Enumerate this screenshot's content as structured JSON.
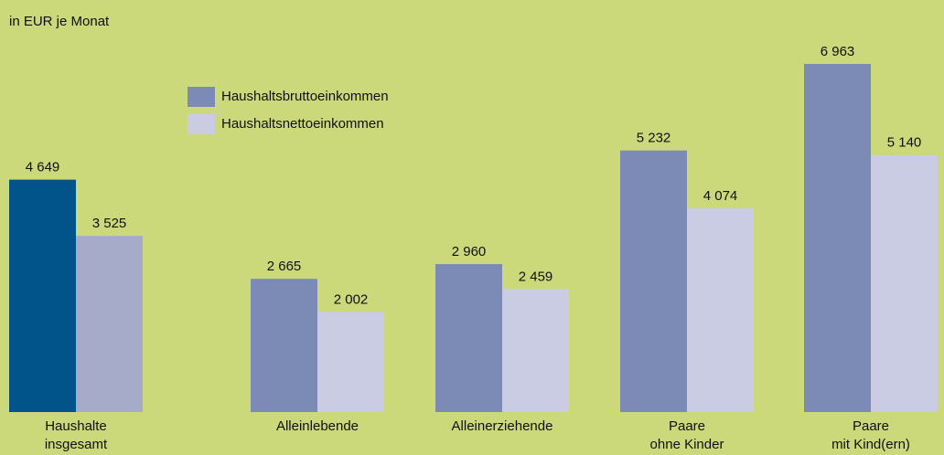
{
  "chart_data": {
    "type": "bar",
    "title": "in EUR je Monat",
    "categories": [
      [
        "Haushalte",
        "insgesamt"
      ],
      [
        "Alleinlebende"
      ],
      [
        "Alleinerziehende"
      ],
      [
        "Paare",
        "ohne Kinder"
      ],
      [
        "Paare",
        "mit Kind(ern)"
      ]
    ],
    "series": [
      {
        "name": "Haushaltsbruttoeinkommen",
        "color": "#7b8bb6",
        "colors": [
          "#00548a",
          "#7b8bb6",
          "#7b8bb6",
          "#7b8bb6",
          "#7b8bb6"
        ],
        "values": [
          4649,
          2665,
          2960,
          5232,
          6963
        ],
        "value_labels": [
          "4 649",
          "2 665",
          "2 960",
          "5 232",
          "6 963"
        ]
      },
      {
        "name": "Haushaltsnettoeinkommen",
        "color": "#c9cce3",
        "colors": [
          "#a7abca",
          "#c9cce3",
          "#c9cce3",
          "#c9cce3",
          "#c9cce3"
        ],
        "values": [
          3525,
          2002,
          2459,
          4074,
          5140
        ],
        "value_labels": [
          "3 525",
          "2 002",
          "2 459",
          "4 074",
          "5 140"
        ]
      }
    ],
    "ylim": [
      0,
      7000
    ],
    "background": "#ccd97b"
  }
}
